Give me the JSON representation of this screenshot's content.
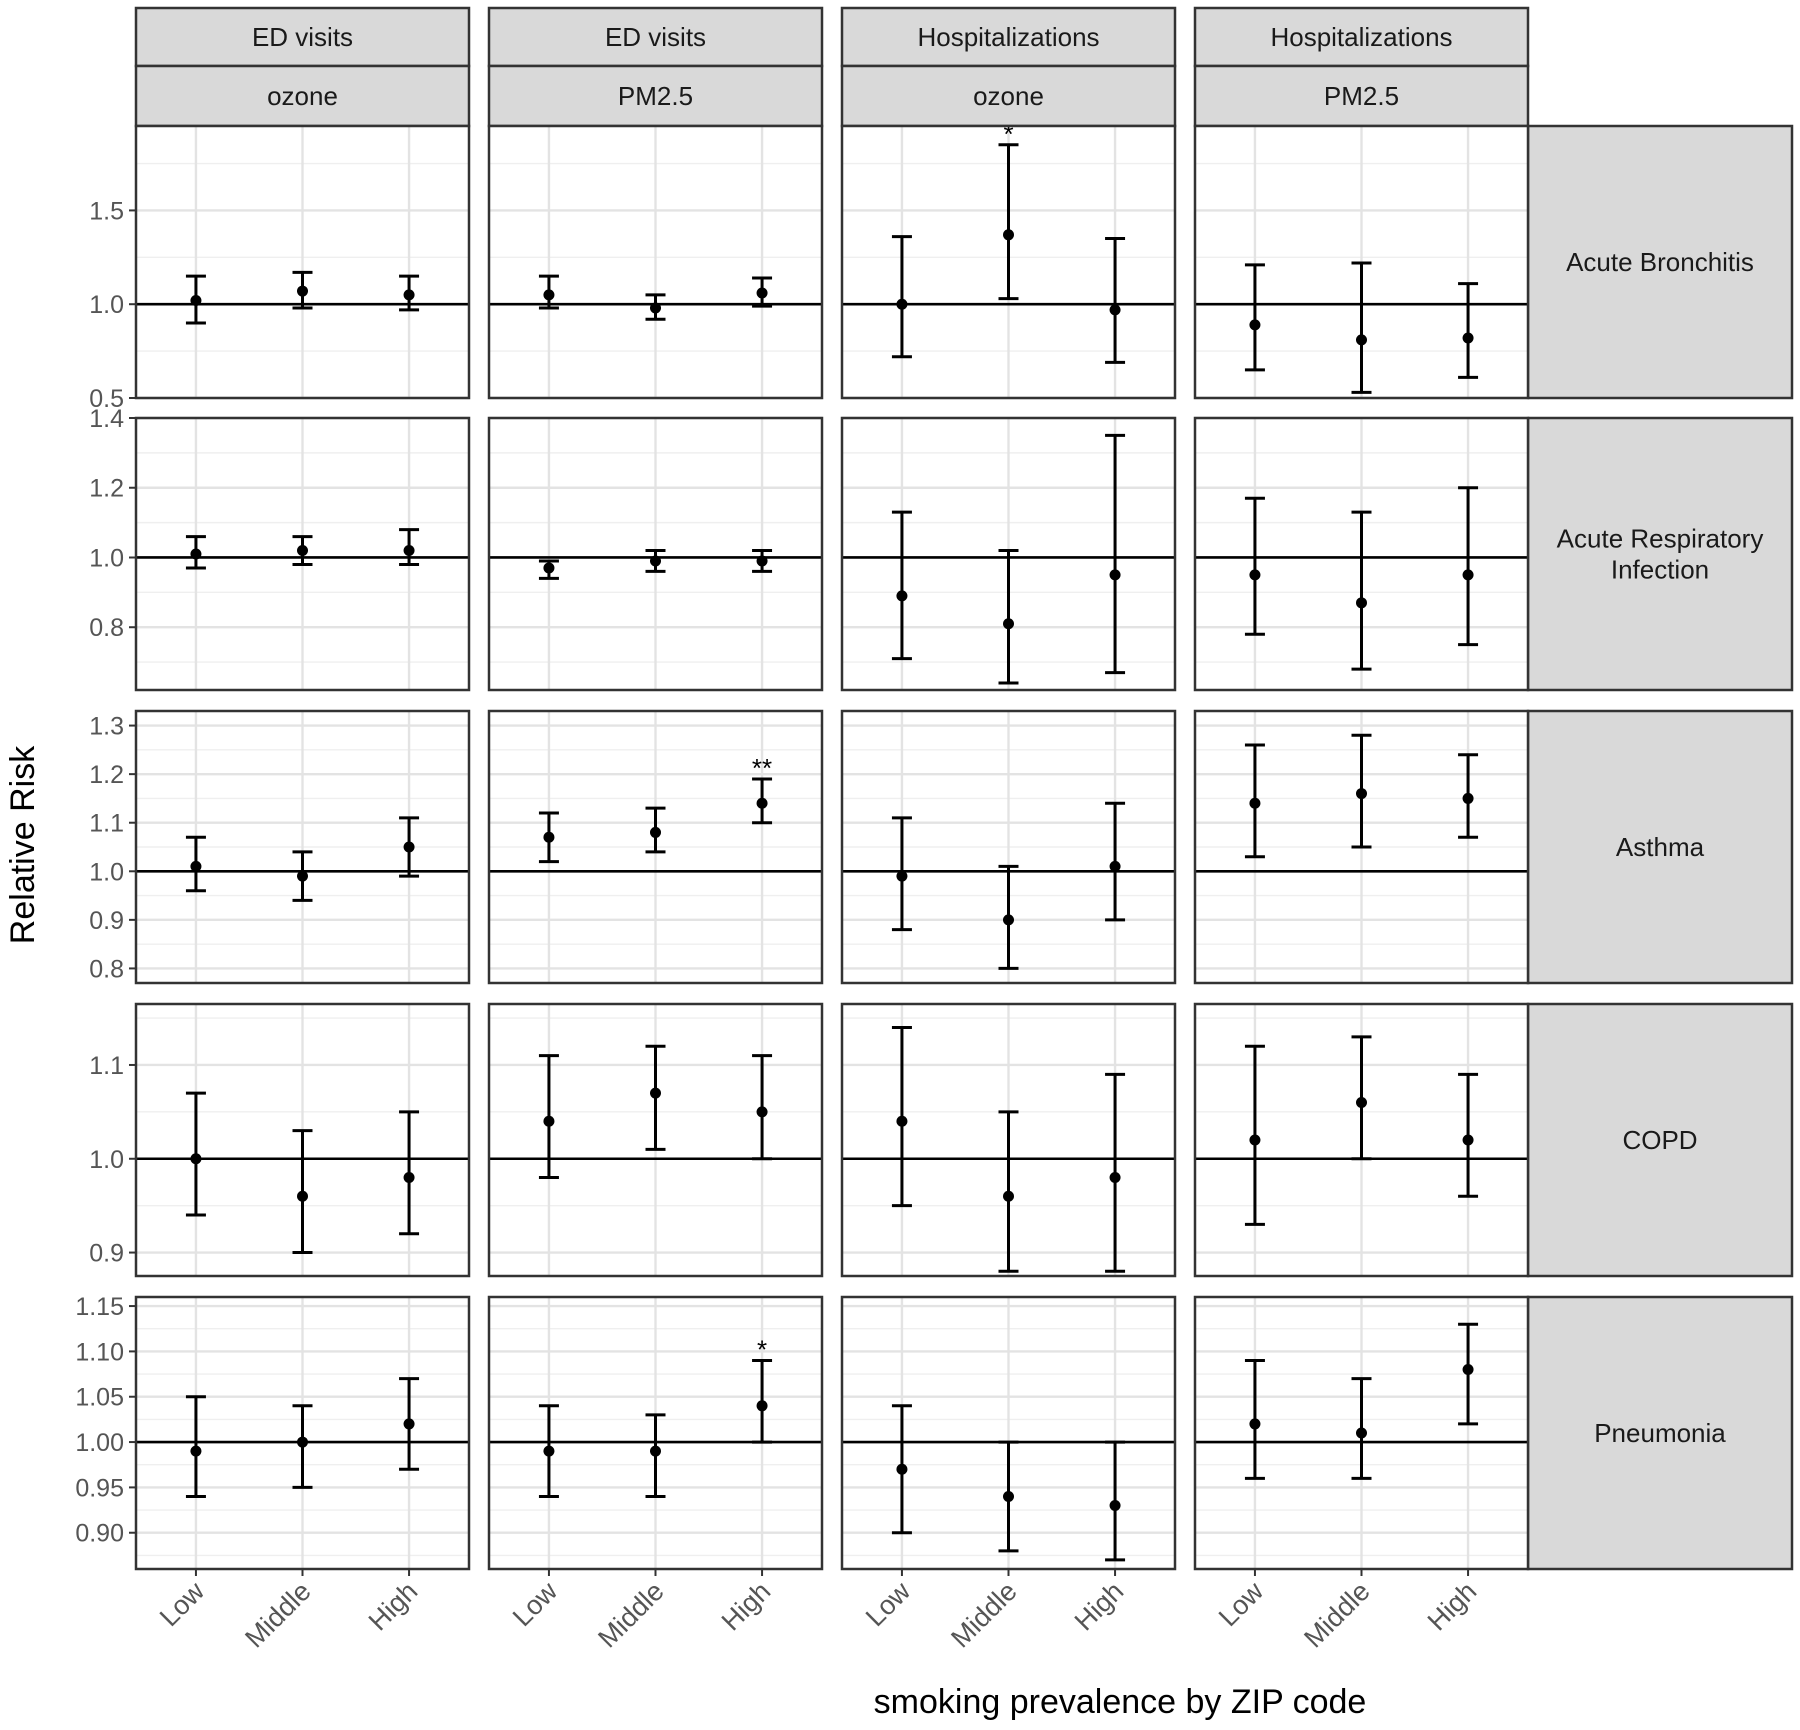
{
  "chart_data": {
    "type": "errorbar",
    "x_axis_title": "smoking prevalence by ZIP code",
    "y_axis_title": "Relative Risk",
    "categories": [
      "Low",
      "Middle",
      "High"
    ],
    "columns": [
      {
        "outcome": "ED visits",
        "pollutant": "ozone"
      },
      {
        "outcome": "ED visits",
        "pollutant": "PM2.5"
      },
      {
        "outcome": "Hospitalizations",
        "pollutant": "ozone"
      },
      {
        "outcome": "Hospitalizations",
        "pollutant": "PM2.5"
      }
    ],
    "rows": [
      {
        "label_lines": [
          "Acute Bronchitis"
        ],
        "ylim": [
          0.5,
          1.95
        ],
        "ticks": [
          0.5,
          1.0,
          1.5
        ],
        "tick_labels": [
          "0.5",
          "1.0",
          "1.5"
        ],
        "panels": [
          {
            "points": [
              {
                "est": 1.02,
                "lo": 0.9,
                "hi": 1.15
              },
              {
                "est": 1.07,
                "lo": 0.98,
                "hi": 1.17
              },
              {
                "est": 1.05,
                "lo": 0.97,
                "hi": 1.15
              }
            ]
          },
          {
            "points": [
              {
                "est": 1.05,
                "lo": 0.98,
                "hi": 1.15
              },
              {
                "est": 0.98,
                "lo": 0.92,
                "hi": 1.05
              },
              {
                "est": 1.06,
                "lo": 0.99,
                "hi": 1.14
              }
            ]
          },
          {
            "points": [
              {
                "est": 1.0,
                "lo": 0.72,
                "hi": 1.36
              },
              {
                "est": 1.37,
                "lo": 1.03,
                "hi": 1.85,
                "sig": "*"
              },
              {
                "est": 0.97,
                "lo": 0.69,
                "hi": 1.35
              }
            ]
          },
          {
            "points": [
              {
                "est": 0.89,
                "lo": 0.65,
                "hi": 1.21
              },
              {
                "est": 0.81,
                "lo": 0.53,
                "hi": 1.22
              },
              {
                "est": 0.82,
                "lo": 0.61,
                "hi": 1.11
              }
            ]
          }
        ]
      },
      {
        "label_lines": [
          "Acute Respiratory",
          "Infection"
        ],
        "ylim": [
          0.62,
          1.4
        ],
        "ticks": [
          0.8,
          1.0,
          1.2,
          1.4
        ],
        "tick_labels": [
          "0.8",
          "1.0",
          "1.2",
          "1.4"
        ],
        "panels": [
          {
            "points": [
              {
                "est": 1.01,
                "lo": 0.97,
                "hi": 1.06
              },
              {
                "est": 1.02,
                "lo": 0.98,
                "hi": 1.06
              },
              {
                "est": 1.02,
                "lo": 0.98,
                "hi": 1.08
              }
            ]
          },
          {
            "points": [
              {
                "est": 0.97,
                "lo": 0.94,
                "hi": 0.99
              },
              {
                "est": 0.99,
                "lo": 0.96,
                "hi": 1.02
              },
              {
                "est": 0.99,
                "lo": 0.96,
                "hi": 1.02
              }
            ]
          },
          {
            "points": [
              {
                "est": 0.89,
                "lo": 0.71,
                "hi": 1.13
              },
              {
                "est": 0.81,
                "lo": 0.64,
                "hi": 1.02
              },
              {
                "est": 0.95,
                "lo": 0.67,
                "hi": 1.35
              }
            ]
          },
          {
            "points": [
              {
                "est": 0.95,
                "lo": 0.78,
                "hi": 1.17
              },
              {
                "est": 0.87,
                "lo": 0.68,
                "hi": 1.13
              },
              {
                "est": 0.95,
                "lo": 0.75,
                "hi": 1.2
              }
            ]
          }
        ]
      },
      {
        "label_lines": [
          "Asthma"
        ],
        "ylim": [
          0.77,
          1.33
        ],
        "ticks": [
          0.8,
          0.9,
          1.0,
          1.1,
          1.2,
          1.3
        ],
        "tick_labels": [
          "0.8",
          "0.9",
          "1.0",
          "1.1",
          "1.2",
          "1.3"
        ],
        "panels": [
          {
            "points": [
              {
                "est": 1.01,
                "lo": 0.96,
                "hi": 1.07
              },
              {
                "est": 0.99,
                "lo": 0.94,
                "hi": 1.04
              },
              {
                "est": 1.05,
                "lo": 0.99,
                "hi": 1.11
              }
            ]
          },
          {
            "points": [
              {
                "est": 1.07,
                "lo": 1.02,
                "hi": 1.12
              },
              {
                "est": 1.08,
                "lo": 1.04,
                "hi": 1.13
              },
              {
                "est": 1.14,
                "lo": 1.1,
                "hi": 1.19,
                "sig": "**"
              }
            ]
          },
          {
            "points": [
              {
                "est": 0.99,
                "lo": 0.88,
                "hi": 1.11
              },
              {
                "est": 0.9,
                "lo": 0.8,
                "hi": 1.01
              },
              {
                "est": 1.01,
                "lo": 0.9,
                "hi": 1.14
              }
            ]
          },
          {
            "points": [
              {
                "est": 1.14,
                "lo": 1.03,
                "hi": 1.26
              },
              {
                "est": 1.16,
                "lo": 1.05,
                "hi": 1.28
              },
              {
                "est": 1.15,
                "lo": 1.07,
                "hi": 1.24
              }
            ]
          }
        ]
      },
      {
        "label_lines": [
          "COPD"
        ],
        "ylim": [
          0.875,
          1.165
        ],
        "ticks": [
          0.9,
          1.0,
          1.1
        ],
        "tick_labels": [
          "0.9",
          "1.0",
          "1.1"
        ],
        "panels": [
          {
            "points": [
              {
                "est": 1.0,
                "lo": 0.94,
                "hi": 1.07
              },
              {
                "est": 0.96,
                "lo": 0.9,
                "hi": 1.03
              },
              {
                "est": 0.98,
                "lo": 0.92,
                "hi": 1.05
              }
            ]
          },
          {
            "points": [
              {
                "est": 1.04,
                "lo": 0.98,
                "hi": 1.11
              },
              {
                "est": 1.07,
                "lo": 1.01,
                "hi": 1.12
              },
              {
                "est": 1.05,
                "lo": 1.0,
                "hi": 1.11
              }
            ]
          },
          {
            "points": [
              {
                "est": 1.04,
                "lo": 0.95,
                "hi": 1.14
              },
              {
                "est": 0.96,
                "lo": 0.88,
                "hi": 1.05
              },
              {
                "est": 0.98,
                "lo": 0.88,
                "hi": 1.09
              }
            ]
          },
          {
            "points": [
              {
                "est": 1.02,
                "lo": 0.93,
                "hi": 1.12
              },
              {
                "est": 1.06,
                "lo": 1.0,
                "hi": 1.13
              },
              {
                "est": 1.02,
                "lo": 0.96,
                "hi": 1.09
              }
            ]
          }
        ]
      },
      {
        "label_lines": [
          "Pneumonia"
        ],
        "ylim": [
          0.86,
          1.16
        ],
        "ticks": [
          0.9,
          0.95,
          1.0,
          1.05,
          1.1,
          1.15
        ],
        "tick_labels": [
          "0.90",
          "0.95",
          "1.00",
          "1.05",
          "1.10",
          "1.15"
        ],
        "panels": [
          {
            "points": [
              {
                "est": 0.99,
                "lo": 0.94,
                "hi": 1.05
              },
              {
                "est": 1.0,
                "lo": 0.95,
                "hi": 1.04
              },
              {
                "est": 1.02,
                "lo": 0.97,
                "hi": 1.07
              }
            ]
          },
          {
            "points": [
              {
                "est": 0.99,
                "lo": 0.94,
                "hi": 1.04
              },
              {
                "est": 0.99,
                "lo": 0.94,
                "hi": 1.03
              },
              {
                "est": 1.04,
                "lo": 1.0,
                "hi": 1.09,
                "sig": "*"
              }
            ]
          },
          {
            "points": [
              {
                "est": 0.97,
                "lo": 0.9,
                "hi": 1.04
              },
              {
                "est": 0.94,
                "lo": 0.88,
                "hi": 1.0
              },
              {
                "est": 0.93,
                "lo": 0.87,
                "hi": 1.0
              }
            ]
          },
          {
            "points": [
              {
                "est": 1.02,
                "lo": 0.96,
                "hi": 1.09
              },
              {
                "est": 1.01,
                "lo": 0.96,
                "hi": 1.07
              },
              {
                "est": 1.08,
                "lo": 1.02,
                "hi": 1.13
              }
            ]
          }
        ]
      }
    ]
  }
}
